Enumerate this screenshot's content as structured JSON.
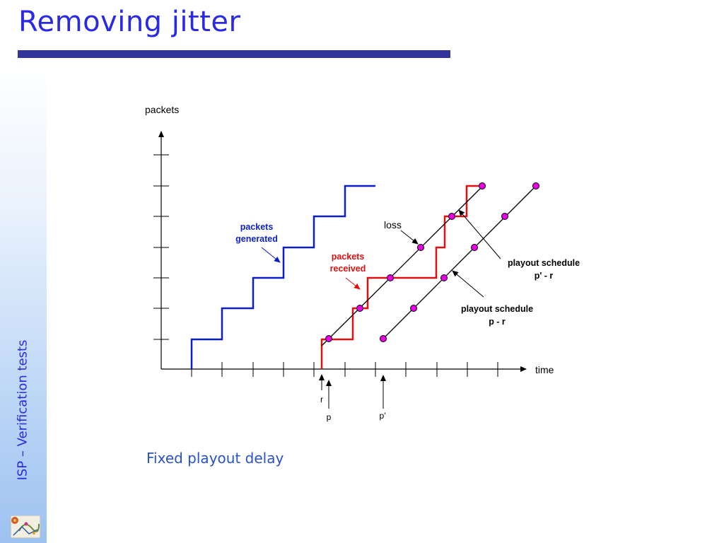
{
  "slide": {
    "title": "Removing jitter",
    "side_caption": "ISP – Verification tests",
    "caption": "Fixed playout delay"
  },
  "diagram": {
    "axis_y_label": "packets",
    "axis_x_label": "time",
    "label_packets_generated_line1": "packets",
    "label_packets_generated_line2": "generated",
    "label_packets_received_line1": "packets",
    "label_packets_received_line2": "received",
    "label_loss": "loss",
    "label_schedule_p_prime_line1": "playout schedule",
    "label_schedule_p_prime_line2": "p' - r",
    "label_schedule_p_line1": "playout schedule",
    "label_schedule_p_line2": "p - r",
    "marker_r": "r",
    "marker_p": "p",
    "marker_p_prime": "p'"
  },
  "colors": {
    "title": "#2a2ae6",
    "rule": "#33339a",
    "generated": "#0b1fc8",
    "received": "#e01010",
    "dot": "#e600e6",
    "caption": "#2a52c8"
  }
}
